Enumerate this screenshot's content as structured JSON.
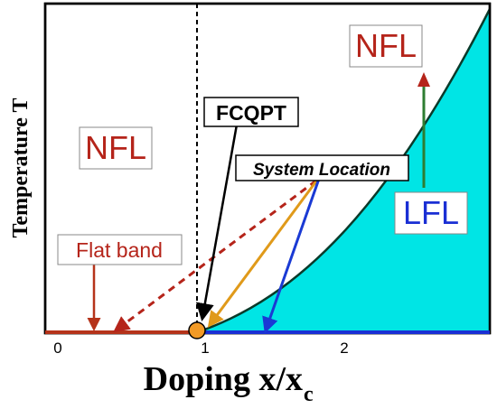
{
  "axes": {
    "x_label_main": "Doping x/x",
    "x_label_sub": "c",
    "y_label": "Temperature T",
    "x_ticks": [
      "0",
      "1",
      "2"
    ]
  },
  "labels": {
    "nfl_left": "NFL",
    "nfl_right": "NFL",
    "lfl": "LFL",
    "fcqpt": "FCQPT",
    "system_location": "System Location",
    "flat_band": "Flat band"
  },
  "colors": {
    "lfl_region": "#00e5e5",
    "flat_band_line": "#b5331a",
    "lfl_axis_line": "#1a2fd4",
    "nfl_text": "#b5241a",
    "lfl_text": "#1a2fd4",
    "orange_arrow": "#e09a1a",
    "blue_arrow": "#1a3ad4",
    "qcp_point": "#f29a26",
    "green_arrow": "#2e7d32",
    "red_arrowhead": "#b5241a"
  }
}
